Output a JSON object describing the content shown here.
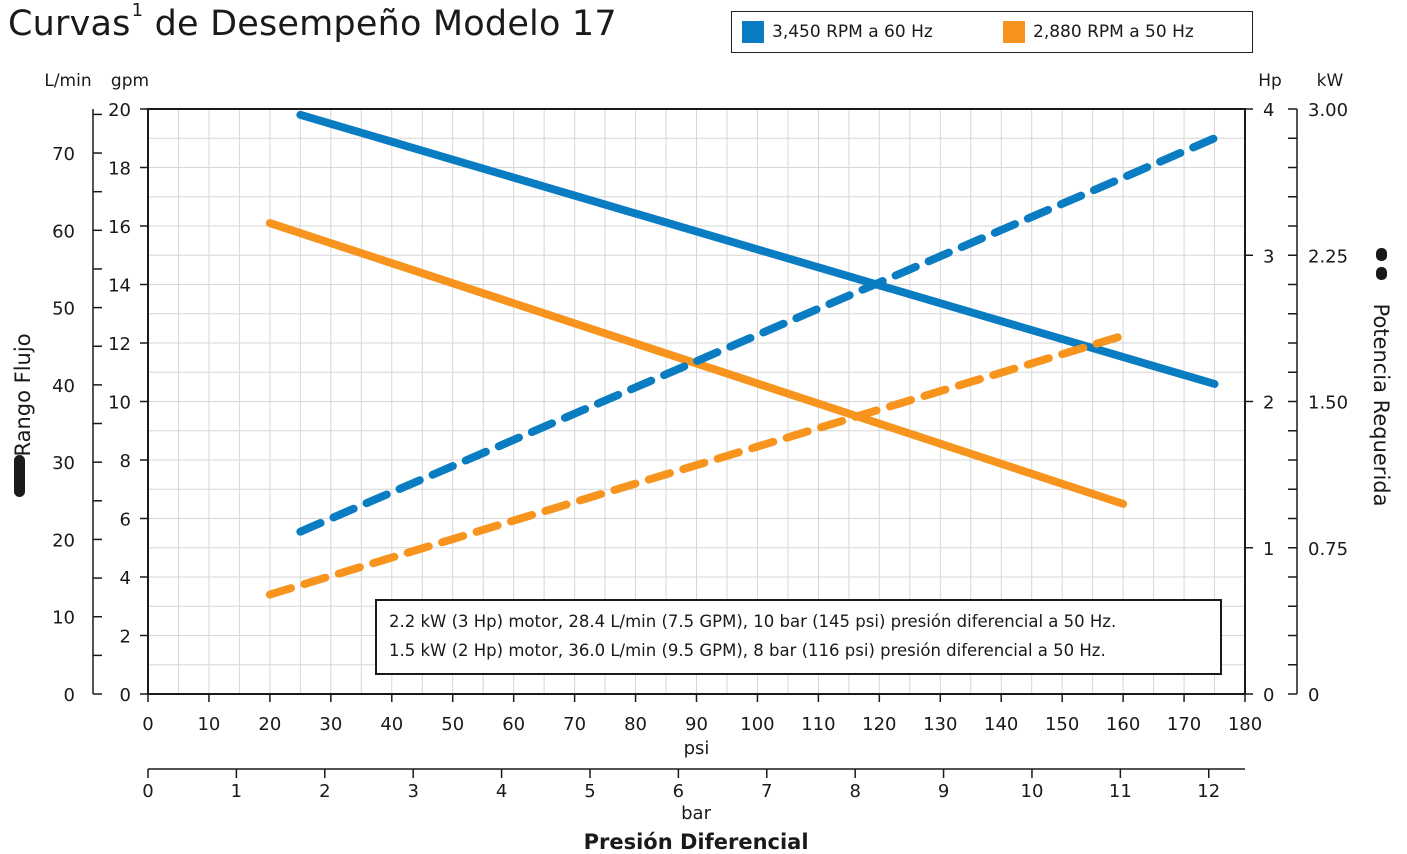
{
  "title": "Curvas",
  "title_superscript": "1",
  "title_rest": " de Desempeño Modelo 17",
  "legend": [
    {
      "label": "3,450 RPM a 60 Hz",
      "color": "#0a7cc1"
    },
    {
      "label": "2,880 RPM a 50 Hz",
      "color": "#f7941d"
    }
  ],
  "note_lines": [
    "2.2 kW (3 Hp) motor, 28.4 L/min (7.5 GPM), 10 bar (145 psi) presión diferencial a 50 Hz.",
    "1.5 kW (2 Hp) motor, 36.0 L/min (9.5 GPM), 8 bar (116 psi) presión diferencial a 50 Hz."
  ],
  "chart_data": {
    "type": "line",
    "x_axis": {
      "label": "psi",
      "range": [
        0,
        180
      ],
      "ticks": [
        0,
        10,
        20,
        30,
        40,
        50,
        60,
        70,
        80,
        90,
        100,
        110,
        120,
        130,
        140,
        150,
        160,
        170,
        180
      ]
    },
    "x_axis_secondary": {
      "label": "bar",
      "title": "Presión Diferencial",
      "range": [
        0,
        12.41
      ],
      "ticks": [
        0,
        1,
        2,
        3,
        4,
        5,
        6,
        7,
        8,
        9,
        10,
        11,
        12
      ]
    },
    "y_axis_left_inner": {
      "label": "gpm",
      "range": [
        0,
        20
      ],
      "ticks": [
        0,
        2,
        4,
        6,
        8,
        10,
        12,
        14,
        16,
        18,
        20
      ]
    },
    "y_axis_left_outer": {
      "label": "L/min",
      "title": "Rango Flujo",
      "range": [
        0,
        75.7
      ],
      "ticks": [
        0,
        10,
        20,
        30,
        40,
        50,
        60,
        70
      ]
    },
    "y_axis_right_inner": {
      "label": "Hp",
      "range": [
        0,
        4
      ],
      "ticks": [
        0,
        1,
        2,
        3,
        4
      ]
    },
    "y_axis_right_outer": {
      "label": "kW",
      "title": "Potencia Requerida",
      "range": [
        0,
        3.0
      ],
      "ticks": [
        0,
        0.75,
        1.5,
        2.25,
        3.0
      ],
      "tick_labels": [
        "0",
        "0.75",
        "1.50",
        "2.25",
        "3.00"
      ]
    },
    "grid": true,
    "legend_position": "top-right",
    "series": [
      {
        "legend": "3,450 RPM a 60 Hz",
        "quantity": "flow",
        "axis": "gpm",
        "color": "#0a7cc1",
        "dashed": false,
        "x": [
          25,
          175
        ],
        "y": [
          19.8,
          10.6
        ]
      },
      {
        "legend": "2,880 RPM a 50 Hz",
        "quantity": "flow",
        "axis": "gpm",
        "color": "#f7941d",
        "dashed": false,
        "x": [
          20,
          160
        ],
        "y": [
          16.1,
          6.5
        ]
      },
      {
        "legend": "3,450 RPM a 60 Hz",
        "quantity": "power",
        "axis": "Hp",
        "color": "#0a7cc1",
        "dashed": true,
        "x": [
          25,
          175
        ],
        "y": [
          1.11,
          3.8
        ]
      },
      {
        "legend": "2,880 RPM a 50 Hz",
        "quantity": "power",
        "axis": "Hp",
        "color": "#f7941d",
        "dashed": true,
        "x": [
          20,
          160
        ],
        "y": [
          0.68,
          2.45
        ]
      }
    ]
  }
}
